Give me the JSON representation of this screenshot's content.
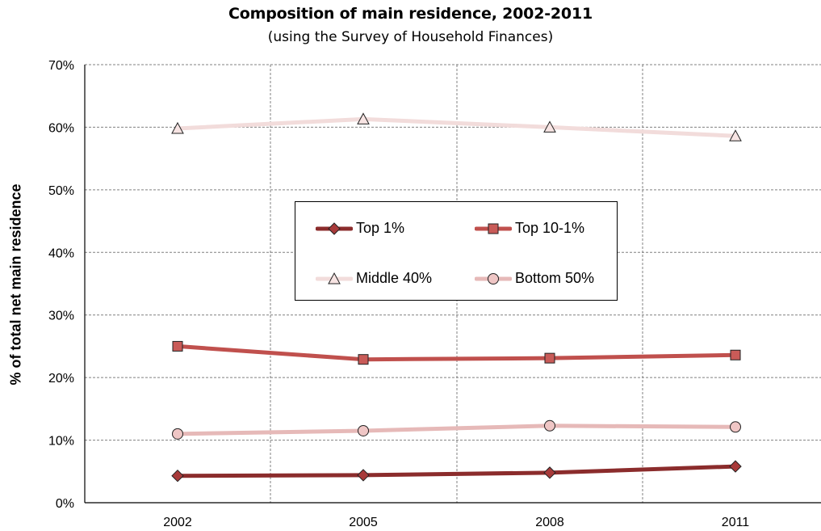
{
  "chart_data": {
    "type": "line",
    "title": "Composition of main residence, 2002-2011",
    "subtitle": "(using the Survey of Household Finances)",
    "xlabel": "",
    "ylabel": "% of total net main residence",
    "x": [
      "2002",
      "2005",
      "2008",
      "2011"
    ],
    "ylim": [
      0,
      70
    ],
    "yticks": [
      "0%",
      "10%",
      "20%",
      "30%",
      "40%",
      "50%",
      "60%",
      "70%"
    ],
    "grid": true,
    "legend_position": "center",
    "series": [
      {
        "name": "Top 1%",
        "values": [
          4.3,
          4.4,
          4.8,
          5.8
        ],
        "color": "#8b2c2c",
        "marker": "diamond",
        "marker_fill": "#a83a3a"
      },
      {
        "name": "Top 10-1%",
        "values": [
          25.0,
          22.9,
          23.1,
          23.6
        ],
        "color": "#c0504d",
        "marker": "square",
        "marker_fill": "#c95b58"
      },
      {
        "name": "Middle 40%",
        "values": [
          59.8,
          61.3,
          60.0,
          58.6
        ],
        "color": "#f2dcdb",
        "marker": "triangle",
        "marker_fill": "#f7e4e3"
      },
      {
        "name": "Bottom 50%",
        "values": [
          11.0,
          11.5,
          12.3,
          12.1
        ],
        "color": "#e6b9b8",
        "marker": "circle",
        "marker_fill": "#efc6c5"
      }
    ]
  }
}
